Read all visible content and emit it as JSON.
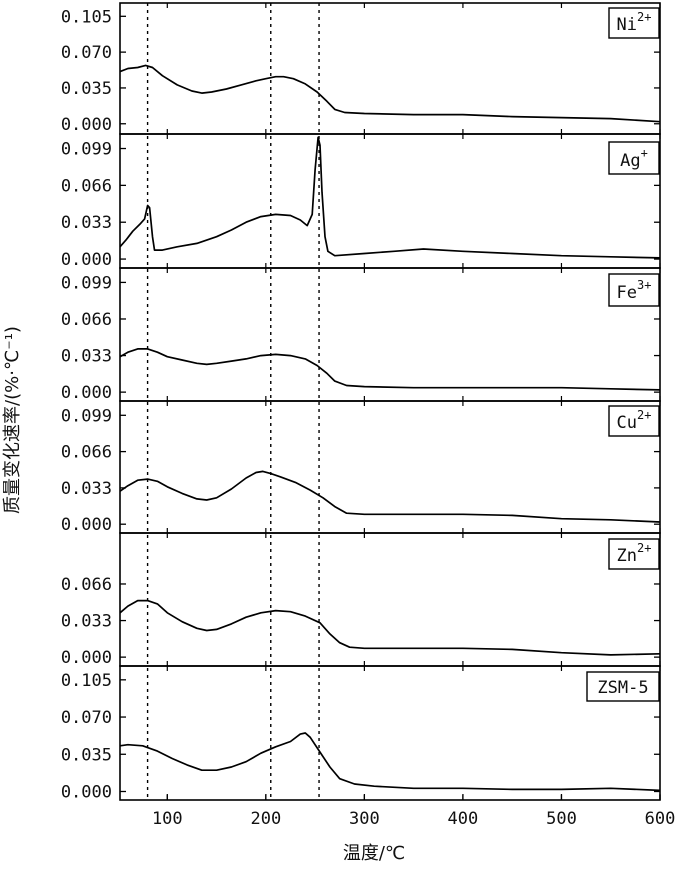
{
  "chart_data": {
    "type": "line",
    "y_axis_label": "质量变化速率/(%·℃⁻¹)",
    "x_axis_label": "温度/℃",
    "x_ticks": [
      100,
      200,
      300,
      400,
      500,
      600
    ],
    "x_range": [
      52,
      600
    ],
    "reference_lines_x": [
      80,
      205,
      254
    ],
    "panels": [
      {
        "ion": "Ni",
        "sup": "2+",
        "yticks": [
          "0.105",
          "0.070",
          "0.035",
          "0.000"
        ],
        "ylim": [
          -0.01,
          0.118
        ],
        "series": [
          [
            52,
            0.051
          ],
          [
            60,
            0.054
          ],
          [
            70,
            0.055
          ],
          [
            78,
            0.057
          ],
          [
            85,
            0.055
          ],
          [
            95,
            0.047
          ],
          [
            110,
            0.038
          ],
          [
            125,
            0.032
          ],
          [
            135,
            0.03
          ],
          [
            145,
            0.031
          ],
          [
            160,
            0.034
          ],
          [
            175,
            0.038
          ],
          [
            190,
            0.042
          ],
          [
            200,
            0.044
          ],
          [
            210,
            0.046
          ],
          [
            218,
            0.046
          ],
          [
            228,
            0.044
          ],
          [
            240,
            0.039
          ],
          [
            252,
            0.031
          ],
          [
            262,
            0.022
          ],
          [
            270,
            0.014
          ],
          [
            280,
            0.011
          ],
          [
            300,
            0.01
          ],
          [
            350,
            0.009
          ],
          [
            400,
            0.009
          ],
          [
            450,
            0.007
          ],
          [
            500,
            0.006
          ],
          [
            550,
            0.005
          ],
          [
            600,
            0.002
          ]
        ]
      },
      {
        "ion": "Ag",
        "sup": "+",
        "yticks": [
          "0.099",
          "0.066",
          "0.033",
          "0.000"
        ],
        "ylim": [
          -0.008,
          0.112
        ],
        "series": [
          [
            52,
            0.011
          ],
          [
            58,
            0.017
          ],
          [
            65,
            0.025
          ],
          [
            72,
            0.031
          ],
          [
            77,
            0.036
          ],
          [
            80,
            0.048
          ],
          [
            82,
            0.046
          ],
          [
            85,
            0.02
          ],
          [
            87,
            0.008
          ],
          [
            95,
            0.008
          ],
          [
            110,
            0.011
          ],
          [
            130,
            0.014
          ],
          [
            150,
            0.02
          ],
          [
            165,
            0.026
          ],
          [
            180,
            0.033
          ],
          [
            195,
            0.038
          ],
          [
            210,
            0.04
          ],
          [
            225,
            0.039
          ],
          [
            235,
            0.035
          ],
          [
            242,
            0.03
          ],
          [
            247,
            0.04
          ],
          [
            250,
            0.08
          ],
          [
            253,
            0.109
          ],
          [
            255,
            0.102
          ],
          [
            257,
            0.06
          ],
          [
            260,
            0.02
          ],
          [
            263,
            0.007
          ],
          [
            270,
            0.003
          ],
          [
            300,
            0.005
          ],
          [
            330,
            0.007
          ],
          [
            360,
            0.009
          ],
          [
            400,
            0.007
          ],
          [
            450,
            0.005
          ],
          [
            500,
            0.003
          ],
          [
            550,
            0.002
          ],
          [
            600,
            0.001
          ]
        ]
      },
      {
        "ion": "Fe",
        "sup": "3+",
        "yticks": [
          "0.099",
          "0.066",
          "0.033",
          "0.000"
        ],
        "ylim": [
          -0.008,
          0.112
        ],
        "series": [
          [
            52,
            0.032
          ],
          [
            60,
            0.036
          ],
          [
            70,
            0.039
          ],
          [
            80,
            0.039
          ],
          [
            90,
            0.036
          ],
          [
            100,
            0.032
          ],
          [
            115,
            0.029
          ],
          [
            130,
            0.026
          ],
          [
            140,
            0.025
          ],
          [
            150,
            0.026
          ],
          [
            165,
            0.028
          ],
          [
            180,
            0.03
          ],
          [
            195,
            0.033
          ],
          [
            210,
            0.034
          ],
          [
            225,
            0.033
          ],
          [
            240,
            0.03
          ],
          [
            252,
            0.024
          ],
          [
            262,
            0.017
          ],
          [
            270,
            0.01
          ],
          [
            282,
            0.006
          ],
          [
            300,
            0.005
          ],
          [
            350,
            0.004
          ],
          [
            400,
            0.004
          ],
          [
            450,
            0.004
          ],
          [
            500,
            0.004
          ],
          [
            550,
            0.003
          ],
          [
            600,
            0.002
          ]
        ]
      },
      {
        "ion": "Cu",
        "sup": "2+",
        "yticks": [
          "0.099",
          "0.066",
          "0.033",
          "0.000"
        ],
        "ylim": [
          -0.008,
          0.112
        ],
        "series": [
          [
            52,
            0.03
          ],
          [
            60,
            0.035
          ],
          [
            70,
            0.04
          ],
          [
            80,
            0.041
          ],
          [
            90,
            0.039
          ],
          [
            100,
            0.034
          ],
          [
            115,
            0.028
          ],
          [
            130,
            0.023
          ],
          [
            140,
            0.022
          ],
          [
            150,
            0.024
          ],
          [
            165,
            0.032
          ],
          [
            180,
            0.042
          ],
          [
            190,
            0.047
          ],
          [
            197,
            0.048
          ],
          [
            205,
            0.046
          ],
          [
            215,
            0.043
          ],
          [
            230,
            0.038
          ],
          [
            245,
            0.031
          ],
          [
            258,
            0.024
          ],
          [
            270,
            0.016
          ],
          [
            282,
            0.01
          ],
          [
            300,
            0.009
          ],
          [
            350,
            0.009
          ],
          [
            400,
            0.009
          ],
          [
            450,
            0.008
          ],
          [
            500,
            0.005
          ],
          [
            550,
            0.004
          ],
          [
            600,
            0.002
          ]
        ]
      },
      {
        "ion": "Zn",
        "sup": "2+",
        "yticks": [
          "0.066",
          "0.033",
          "0.000"
        ],
        "ylim": [
          -0.008,
          0.112
        ],
        "series": [
          [
            52,
            0.04
          ],
          [
            60,
            0.046
          ],
          [
            70,
            0.051
          ],
          [
            80,
            0.051
          ],
          [
            90,
            0.048
          ],
          [
            100,
            0.04
          ],
          [
            115,
            0.032
          ],
          [
            130,
            0.026
          ],
          [
            140,
            0.024
          ],
          [
            150,
            0.025
          ],
          [
            165,
            0.03
          ],
          [
            180,
            0.036
          ],
          [
            195,
            0.04
          ],
          [
            210,
            0.042
          ],
          [
            225,
            0.041
          ],
          [
            240,
            0.037
          ],
          [
            255,
            0.031
          ],
          [
            265,
            0.021
          ],
          [
            275,
            0.013
          ],
          [
            285,
            0.009
          ],
          [
            300,
            0.008
          ],
          [
            350,
            0.008
          ],
          [
            400,
            0.008
          ],
          [
            450,
            0.007
          ],
          [
            500,
            0.004
          ],
          [
            550,
            0.002
          ],
          [
            600,
            0.003
          ]
        ]
      },
      {
        "ion": "ZSM-5",
        "sup": "",
        "yticks": [
          "0.105",
          "0.070",
          "0.035",
          "0.000"
        ],
        "ylim": [
          -0.008,
          0.118
        ],
        "series": [
          [
            52,
            0.043
          ],
          [
            60,
            0.044
          ],
          [
            75,
            0.043
          ],
          [
            90,
            0.038
          ],
          [
            105,
            0.031
          ],
          [
            120,
            0.025
          ],
          [
            135,
            0.02
          ],
          [
            150,
            0.02
          ],
          [
            165,
            0.023
          ],
          [
            180,
            0.028
          ],
          [
            195,
            0.036
          ],
          [
            210,
            0.042
          ],
          [
            225,
            0.047
          ],
          [
            235,
            0.054
          ],
          [
            240,
            0.055
          ],
          [
            245,
            0.051
          ],
          [
            255,
            0.037
          ],
          [
            265,
            0.023
          ],
          [
            275,
            0.012
          ],
          [
            290,
            0.007
          ],
          [
            310,
            0.005
          ],
          [
            350,
            0.003
          ],
          [
            400,
            0.003
          ],
          [
            450,
            0.002
          ],
          [
            500,
            0.002
          ],
          [
            550,
            0.003
          ],
          [
            600,
            0.001
          ]
        ]
      }
    ]
  }
}
